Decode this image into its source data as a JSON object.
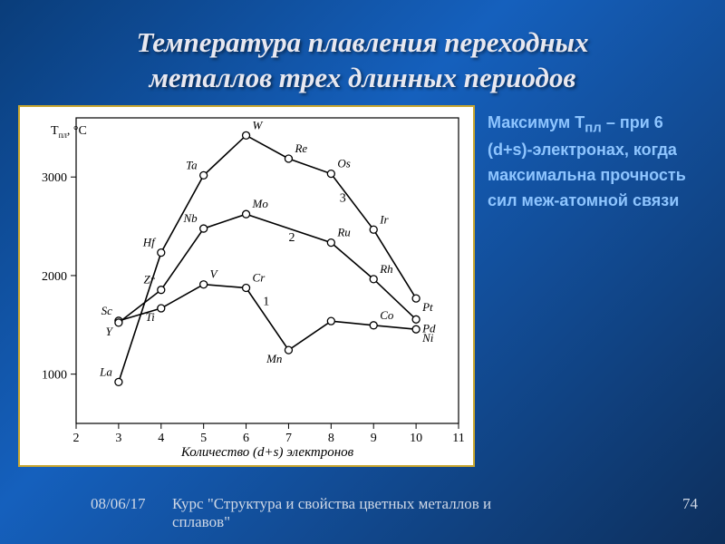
{
  "title_line1": "Температура плавления переходных",
  "title_line2": "металлов трех длинных периодов",
  "side_text_html": "Максимум T<sub>пл</sub> – при 6 (d+s)-электронах, когда максимальна прочность сил меж-атомной связи",
  "footer": {
    "date": "08/06/17",
    "course1": "Курс \"Структура и свойства цветных металлов и",
    "course2": "сплавов\"",
    "page": "74"
  },
  "chart": {
    "type": "line",
    "background_color": "#ffffff",
    "grid_color": "#000000",
    "line_color": "#000000",
    "marker_fill": "#ffffff",
    "marker_stroke": "#000000",
    "line_width": 1.6,
    "marker_radius": 4,
    "title_fontstyle": "italic",
    "label_fontsize": 13,
    "tick_fontsize": 14,
    "element_fontsize": 13,
    "xlabel": "Количество (d+s) электронов",
    "ylabel": "Tпл, °C",
    "xlim": [
      2,
      11
    ],
    "ylim": [
      500,
      3600
    ],
    "xtick_vals": [
      2,
      3,
      4,
      5,
      6,
      7,
      8,
      9,
      10,
      11
    ],
    "ytick_vals": [
      1000,
      2000,
      3000
    ],
    "series": [
      {
        "id": "1",
        "label_pos": {
          "x": 6.4,
          "y": 1700
        },
        "points": [
          {
            "x": 3,
            "y": 1541,
            "label": "Sc",
            "lp": "ul"
          },
          {
            "x": 4,
            "y": 1668,
            "label": "Ti",
            "lp": "bl"
          },
          {
            "x": 5,
            "y": 1910,
            "label": "V",
            "lp": "ur"
          },
          {
            "x": 6,
            "y": 1875,
            "label": "Cr",
            "lp": "ur"
          },
          {
            "x": 7,
            "y": 1244,
            "label": "Mn",
            "lp": "bl"
          },
          {
            "x": 8,
            "y": 1538,
            "label": "",
            "lp": ""
          },
          {
            "x": 9,
            "y": 1495,
            "label": "Co",
            "lp": "ur"
          },
          {
            "x": 10,
            "y": 1455,
            "label": "Ni",
            "lp": "br"
          }
        ]
      },
      {
        "id": "2",
        "label_pos": {
          "x": 7.0,
          "y": 2350
        },
        "points": [
          {
            "x": 3,
            "y": 1522,
            "label": "Y",
            "lp": "bl"
          },
          {
            "x": 4,
            "y": 1855,
            "label": "Zr",
            "lp": "ul"
          },
          {
            "x": 5,
            "y": 2477,
            "label": "Nb",
            "lp": "ul"
          },
          {
            "x": 6,
            "y": 2623,
            "label": "Mo",
            "lp": "ur"
          },
          {
            "x": 8,
            "y": 2334,
            "label": "Ru",
            "lp": "ur"
          },
          {
            "x": 9,
            "y": 1964,
            "label": "Rh",
            "lp": "ur"
          },
          {
            "x": 10,
            "y": 1555,
            "label": "Pd",
            "lp": "br"
          }
        ]
      },
      {
        "id": "3",
        "label_pos": {
          "x": 8.2,
          "y": 2750
        },
        "points": [
          {
            "x": 3,
            "y": 920,
            "label": "La",
            "lp": "ul"
          },
          {
            "x": 4,
            "y": 2233,
            "label": "Hf",
            "lp": "ul"
          },
          {
            "x": 5,
            "y": 3017,
            "label": "Ta",
            "lp": "ul"
          },
          {
            "x": 6,
            "y": 3422,
            "label": "W",
            "lp": "ur"
          },
          {
            "x": 7,
            "y": 3186,
            "label": "Re",
            "lp": "ur"
          },
          {
            "x": 8,
            "y": 3033,
            "label": "Os",
            "lp": "ur"
          },
          {
            "x": 9,
            "y": 2466,
            "label": "Ir",
            "lp": "ur"
          },
          {
            "x": 10,
            "y": 1768,
            "label": "Pt",
            "lp": "br"
          }
        ]
      }
    ]
  }
}
